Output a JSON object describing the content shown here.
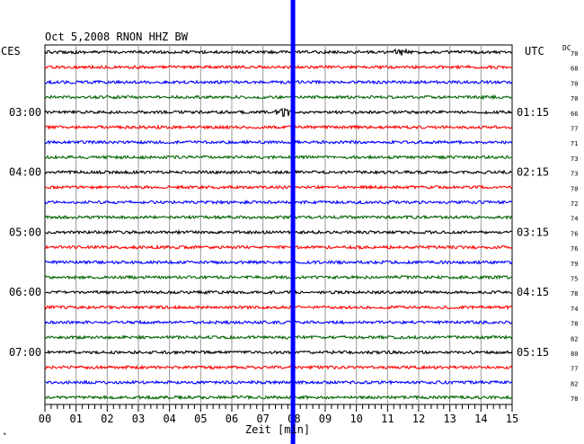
{
  "chart_data": {
    "type": "line",
    "title": "Oct 5,2008   RNON HHZ BW",
    "left_label": "CES",
    "right_label": "UTC",
    "dc_label": "DC",
    "xlabel": "Zeit [min]",
    "xlim": [
      0,
      15
    ],
    "x_ticks": [
      "00",
      "01",
      "02",
      "03",
      "04",
      "05",
      "06",
      "07",
      "08",
      "09",
      "10",
      "11",
      "12",
      "13",
      "14",
      "15"
    ],
    "trace_count": 24,
    "trace_colors": [
      "#000000",
      "#ff0000",
      "#0000ff",
      "#006400"
    ],
    "left_hour_labels": [
      {
        "trace": 4,
        "label": "03:00"
      },
      {
        "trace": 8,
        "label": "04:00"
      },
      {
        "trace": 12,
        "label": "05:00"
      },
      {
        "trace": 16,
        "label": "06:00"
      },
      {
        "trace": 20,
        "label": "07:00"
      }
    ],
    "right_hour_labels": [
      {
        "trace": 4,
        "label": "01:15"
      },
      {
        "trace": 8,
        "label": "02:15"
      },
      {
        "trace": 12,
        "label": "03:15"
      },
      {
        "trace": 16,
        "label": "04:15"
      },
      {
        "trace": 20,
        "label": "05:15"
      }
    ],
    "dc_values": [
      "70",
      "68",
      "70",
      "70",
      "66",
      "77",
      "71",
      "73",
      "73",
      "70",
      "72",
      "74",
      "76",
      "76",
      "79",
      "75",
      "78",
      "74",
      "78",
      "82",
      "80",
      "77",
      "82",
      "78"
    ],
    "marker": {
      "x_min": 7.95,
      "color": "#0000ff"
    },
    "events": [
      {
        "trace": 0,
        "x_min": 11.4,
        "amplitude": "small"
      },
      {
        "trace": 4,
        "x_min": 7.7,
        "amplitude": "large"
      }
    ],
    "footer_mark": "*"
  }
}
